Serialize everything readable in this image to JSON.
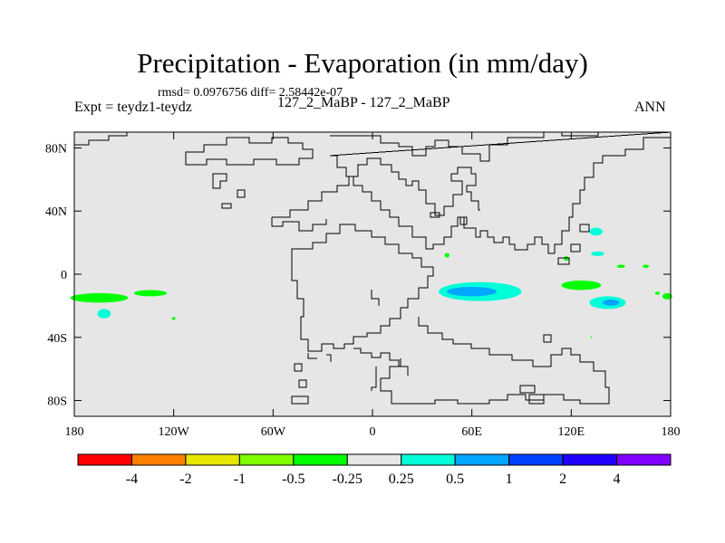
{
  "header": {
    "title": "Precipitation - Evaporation (in mm/day)",
    "stats": "rmsd= 0.0976756 diff= 2.58442e-07",
    "left_label": "Expt = teydz1-teydz",
    "center_label": "127_2_MaBP - 127_2_MaBP",
    "right_label": "ANN"
  },
  "colors": {
    "land_fill": "#e6e6e6",
    "coast": "#000000"
  },
  "chart_data": {
    "type": "heatmap",
    "title": "Precipitation - Evaporation (in mm/day)",
    "subtitle": "127_2_MaBP - 127_2_MaBP",
    "xlabel": "",
    "ylabel": "",
    "xlim": [
      -180,
      180
    ],
    "ylim": [
      -90,
      90
    ],
    "x_ticks": [
      {
        "value": -180,
        "label": "180"
      },
      {
        "value": -120,
        "label": "120W"
      },
      {
        "value": -60,
        "label": "60W"
      },
      {
        "value": 0,
        "label": "0"
      },
      {
        "value": 60,
        "label": "60E"
      },
      {
        "value": 120,
        "label": "120E"
      },
      {
        "value": 180,
        "label": "180"
      }
    ],
    "y_ticks": [
      {
        "value": 80,
        "label": "80N"
      },
      {
        "value": 40,
        "label": "40N"
      },
      {
        "value": 0,
        "label": "0"
      },
      {
        "value": -40,
        "label": "40S"
      },
      {
        "value": -80,
        "label": "80S"
      }
    ],
    "colorbar": {
      "colors": [
        "#ff0000",
        "#ff8000",
        "#e6e600",
        "#80ff00",
        "#00ff00",
        "#e6e6e6",
        "#00ffd9",
        "#00a6ff",
        "#0040ff",
        "#2000ff",
        "#8000ff"
      ],
      "labels": [
        "-4",
        "-2",
        "-1",
        "-0.5",
        "-0.25",
        "0.25",
        "0.5",
        "1",
        "2",
        "4"
      ]
    },
    "anomalies": [
      {
        "region": "tropical-pacific-west",
        "lon": -165,
        "lat": -15,
        "width_deg": 35,
        "height_deg": 6,
        "color": "#00ff00"
      },
      {
        "region": "tropical-pacific-central",
        "lon": -134,
        "lat": -12,
        "width_deg": 20,
        "height_deg": 4,
        "color": "#00ff00"
      },
      {
        "region": "south-pacific-west",
        "lon": -162,
        "lat": -25,
        "width_deg": 8,
        "height_deg": 6,
        "color": "#00ffd9"
      },
      {
        "region": "south-pacific-dot",
        "lon": -120,
        "lat": -28,
        "width_deg": 2,
        "height_deg": 2,
        "color": "#00ff00"
      },
      {
        "region": "indian-ocean-west",
        "lon": 65,
        "lat": -11,
        "width_deg": 50,
        "height_deg": 12,
        "color": "#00ffd9"
      },
      {
        "region": "indian-ocean-core",
        "lon": 60,
        "lat": -11,
        "width_deg": 30,
        "height_deg": 6,
        "color": "#00a6ff"
      },
      {
        "region": "arabian-sea-dot",
        "lon": 45,
        "lat": 12,
        "width_deg": 3,
        "height_deg": 3,
        "color": "#00ff00"
      },
      {
        "region": "maritime-continent",
        "lon": 126,
        "lat": -7,
        "width_deg": 24,
        "height_deg": 6,
        "color": "#00ff00"
      },
      {
        "region": "south-pacific-convergence",
        "lon": 142,
        "lat": -18,
        "width_deg": 22,
        "height_deg": 8,
        "color": "#00ffd9"
      },
      {
        "region": "spcz-core",
        "lon": 144,
        "lat": -18,
        "width_deg": 10,
        "height_deg": 4,
        "color": "#00a6ff"
      },
      {
        "region": "east-asia",
        "lon": 135,
        "lat": 27,
        "width_deg": 8,
        "height_deg": 5,
        "color": "#00ffd9"
      },
      {
        "region": "east-asia-south",
        "lon": 136,
        "lat": 13,
        "width_deg": 8,
        "height_deg": 3,
        "color": "#00ffd9"
      },
      {
        "region": "south-china-sea",
        "lon": 117,
        "lat": 10,
        "width_deg": 3,
        "height_deg": 3,
        "color": "#00ff00"
      },
      {
        "region": "west-pacific-dot-1",
        "lon": 150,
        "lat": 5,
        "width_deg": 5,
        "height_deg": 2,
        "color": "#00ff00"
      },
      {
        "region": "west-pacific-dot-2",
        "lon": 165,
        "lat": 5,
        "width_deg": 4,
        "height_deg": 2,
        "color": "#00ff00"
      },
      {
        "region": "dateline-east",
        "lon": 178,
        "lat": -14,
        "width_deg": 6,
        "height_deg": 4,
        "color": "#00ff00"
      },
      {
        "region": "dateline-east-dot",
        "lon": 172,
        "lat": -12,
        "width_deg": 3,
        "height_deg": 2,
        "color": "#00ff00"
      },
      {
        "region": "south-indian-dot",
        "lon": 132,
        "lat": -40,
        "width_deg": 1,
        "height_deg": 1,
        "color": "#00ff00"
      }
    ]
  }
}
